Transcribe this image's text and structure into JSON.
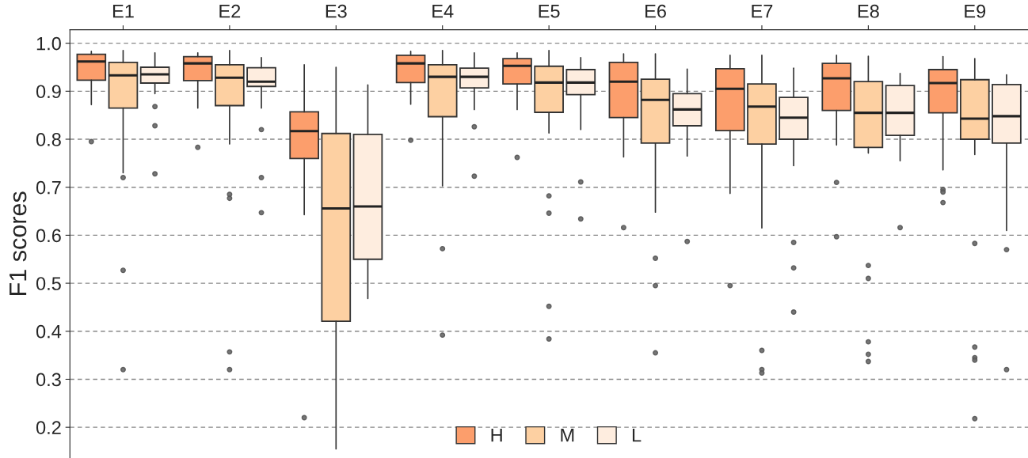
{
  "chart_data": {
    "type": "box",
    "ylabel": "F1 scores",
    "categories": [
      "E1",
      "E2",
      "E3",
      "E4",
      "E5",
      "E6",
      "E7",
      "E8",
      "E9"
    ],
    "ylim": [
      0.136,
      1.028
    ],
    "yticks": [
      0.2,
      0.3,
      0.4,
      0.5,
      0.6,
      0.7,
      0.8,
      0.9,
      {
        "value": 1,
        "label": "1.0"
      }
    ],
    "grid": "y",
    "legend": "bottom",
    "series": [
      {
        "name": "H",
        "color": "#fc9e6c",
        "boxes": [
          {
            "low": 0.872,
            "q1": 0.923,
            "median": 0.962,
            "q3": 0.977,
            "high": 0.983,
            "outliers": [
              0.795
            ]
          },
          {
            "low": 0.865,
            "q1": 0.922,
            "median": 0.958,
            "q3": 0.972,
            "high": 0.98,
            "outliers": [
              0.783
            ]
          },
          {
            "low": 0.643,
            "q1": 0.76,
            "median": 0.817,
            "q3": 0.857,
            "high": 0.955,
            "outliers": [
              0.22
            ]
          },
          {
            "low": 0.873,
            "q1": 0.918,
            "median": 0.958,
            "q3": 0.975,
            "high": 0.983,
            "outliers": [
              0.798
            ]
          },
          {
            "low": 0.862,
            "q1": 0.915,
            "median": 0.953,
            "q3": 0.968,
            "high": 0.98,
            "outliers": [
              0.762
            ]
          },
          {
            "low": 0.763,
            "q1": 0.845,
            "median": 0.92,
            "q3": 0.96,
            "high": 0.978,
            "outliers": [
              0.616
            ]
          },
          {
            "low": 0.687,
            "q1": 0.818,
            "median": 0.905,
            "q3": 0.947,
            "high": 0.975,
            "outliers": [
              0.495
            ]
          },
          {
            "low": 0.788,
            "q1": 0.86,
            "median": 0.927,
            "q3": 0.958,
            "high": 0.975,
            "outliers": [
              0.71,
              0.597
            ]
          },
          {
            "low": 0.736,
            "q1": 0.855,
            "median": 0.917,
            "q3": 0.945,
            "high": 0.972,
            "outliers": [
              0.695,
              0.69,
              0.668
            ]
          }
        ]
      },
      {
        "name": "M",
        "color": "#fdd0a2",
        "boxes": [
          {
            "low": 0.73,
            "q1": 0.865,
            "median": 0.933,
            "q3": 0.96,
            "high": 0.985,
            "outliers": [
              0.72,
              0.527,
              0.32
            ]
          },
          {
            "low": 0.79,
            "q1": 0.87,
            "median": 0.928,
            "q3": 0.955,
            "high": 0.985,
            "outliers": [
              0.685,
              0.677,
              0.357,
              0.32
            ]
          },
          {
            "low": 0.155,
            "q1": 0.421,
            "median": 0.656,
            "q3": 0.812,
            "high": 0.95
          },
          {
            "low": 0.703,
            "q1": 0.847,
            "median": 0.93,
            "q3": 0.955,
            "high": 0.985,
            "outliers": [
              0.572,
              0.392
            ]
          },
          {
            "low": 0.813,
            "q1": 0.856,
            "median": 0.918,
            "q3": 0.952,
            "high": 0.985,
            "outliers": [
              0.682,
              0.646,
              0.452,
              0.384
            ]
          },
          {
            "low": 0.648,
            "q1": 0.792,
            "median": 0.882,
            "q3": 0.925,
            "high": 0.978,
            "outliers": [
              0.552,
              0.495,
              0.355
            ]
          },
          {
            "low": 0.615,
            "q1": 0.79,
            "median": 0.868,
            "q3": 0.915,
            "high": 0.975,
            "outliers": [
              0.36,
              0.32,
              0.313
            ]
          },
          {
            "low": 0.771,
            "q1": 0.783,
            "median": 0.855,
            "q3": 0.92,
            "high": 0.973,
            "outliers": [
              0.537,
              0.51,
              0.378,
              0.352,
              0.337
            ]
          },
          {
            "low": 0.768,
            "q1": 0.8,
            "median": 0.843,
            "q3": 0.924,
            "high": 0.968,
            "outliers": [
              0.583,
              0.367,
              0.345,
              0.34,
              0.218
            ]
          }
        ]
      },
      {
        "name": "L",
        "color": "#feeddf",
        "boxes": [
          {
            "low": 0.895,
            "q1": 0.917,
            "median": 0.935,
            "q3": 0.95,
            "high": 0.98,
            "outliers": [
              0.868,
              0.828,
              0.728
            ]
          },
          {
            "low": 0.865,
            "q1": 0.91,
            "median": 0.92,
            "q3": 0.949,
            "high": 0.97,
            "outliers": [
              0.82,
              0.72,
              0.647
            ]
          },
          {
            "low": 0.468,
            "q1": 0.55,
            "median": 0.66,
            "q3": 0.81,
            "high": 0.913
          },
          {
            "low": 0.862,
            "q1": 0.907,
            "median": 0.93,
            "q3": 0.948,
            "high": 0.98,
            "outliers": [
              0.826,
              0.723
            ]
          },
          {
            "low": 0.82,
            "q1": 0.893,
            "median": 0.918,
            "q3": 0.945,
            "high": 0.97,
            "outliers": [
              0.711,
              0.634
            ]
          },
          {
            "low": 0.765,
            "q1": 0.828,
            "median": 0.862,
            "q3": 0.895,
            "high": 0.946,
            "outliers": [
              0.587
            ]
          },
          {
            "low": 0.745,
            "q1": 0.8,
            "median": 0.845,
            "q3": 0.887,
            "high": 0.948,
            "outliers": [
              0.585,
              0.532,
              0.44
            ]
          },
          {
            "low": 0.755,
            "q1": 0.808,
            "median": 0.855,
            "q3": 0.912,
            "high": 0.937,
            "outliers": [
              0.616
            ]
          },
          {
            "low": 0.61,
            "q1": 0.792,
            "median": 0.848,
            "q3": 0.914,
            "high": 0.934,
            "outliers": [
              0.57,
              0.32
            ]
          }
        ]
      }
    ]
  }
}
